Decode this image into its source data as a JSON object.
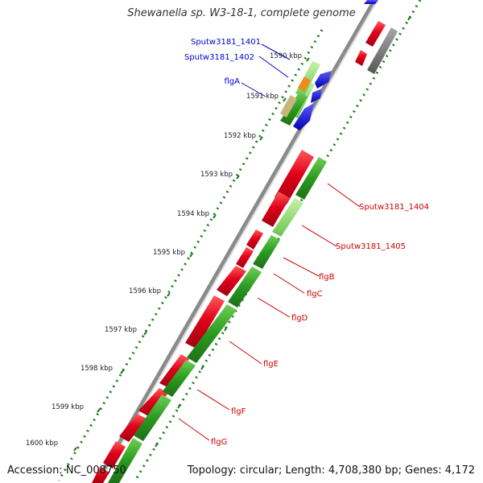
{
  "title": "Shewanella sp. W3-18-1, complete genome",
  "accession": "Accession: NC_008750",
  "topology": "Topology: circular; Length: 4,708,380 bp; Genes: 4,172",
  "ticks": [
    "1590 kbp",
    "1591 kbp",
    "1592 kbp",
    "1593 kbp",
    "1594 kbp",
    "1595 kbp",
    "1596 kbp",
    "1597 kbp",
    "1598 kbp",
    "1599 kbp",
    "1600 kbp"
  ],
  "labels_left": [
    {
      "id": "sputw3181-1401",
      "text": "Sputw3181_1401"
    },
    {
      "id": "sputw3181-1402",
      "text": "Sputw3181_1402"
    },
    {
      "id": "flga",
      "text": "flgA"
    }
  ],
  "labels_right": [
    {
      "id": "sputw3181-1404",
      "text": "Sputw3181_1404"
    },
    {
      "id": "sputw3181-1405",
      "text": "Sputw3181_1405"
    },
    {
      "id": "flgb",
      "text": "flgB"
    },
    {
      "id": "flgc",
      "text": "flgC"
    },
    {
      "id": "flgd",
      "text": "flgD"
    },
    {
      "id": "flge",
      "text": "flgE"
    },
    {
      "id": "flgf",
      "text": "flgF"
    },
    {
      "id": "flgg",
      "text": "flgG"
    }
  ],
  "colors": {
    "forward_cds": "#e0001a",
    "reverse_cds": "#0000dd",
    "green_track": "#2a9a20",
    "light_green": "#7fd35f",
    "backbone": "#777777",
    "label_blue": "#0000cc",
    "label_red": "#cc0000",
    "tick_green": "#1a7a1a"
  }
}
